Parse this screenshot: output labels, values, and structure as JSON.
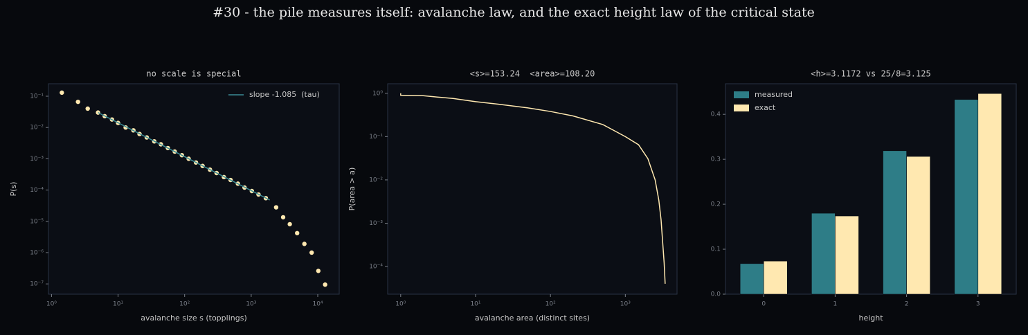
{
  "title": "#30 - the pile measures itself: avalanche law, and the exact height law of the critical state",
  "chart_data": [
    {
      "type": "scatter",
      "title": "no scale is special",
      "xlabel": "avalanche size s (topplings)",
      "ylabel": "P(s)",
      "xscale": "log",
      "yscale": "log",
      "xlim": [
        0.9,
        21000
      ],
      "ylim": [
        4.7e-08,
        0.25
      ],
      "xticks": [
        {
          "value": 1,
          "label": "10⁰"
        },
        {
          "value": 10,
          "label": "10¹"
        },
        {
          "value": 100,
          "label": "10²"
        },
        {
          "value": 1000,
          "label": "10³"
        },
        {
          "value": 10000,
          "label": "10⁴"
        }
      ],
      "yticks": [
        {
          "value": 1e-07,
          "label": "10⁻⁷"
        },
        {
          "value": 1e-06,
          "label": "10⁻⁶"
        },
        {
          "value": 1e-05,
          "label": "10⁻⁵"
        },
        {
          "value": 0.0001,
          "label": "10⁻⁴"
        },
        {
          "value": 0.001,
          "label": "10⁻³"
        },
        {
          "value": 0.01,
          "label": "10⁻²"
        },
        {
          "value": 0.1,
          "label": "10⁻¹"
        }
      ],
      "legend": "upper right",
      "series": [
        {
          "type": "scatter",
          "color": "#ffe8b0",
          "x": [
            1.43,
            2.5,
            3.5,
            5.0,
            6.3,
            8.1,
            10,
            13,
            17,
            21,
            27,
            35,
            44,
            56,
            71,
            91,
            115,
            148,
            186,
            240,
            302,
            389,
            490,
            631,
            794,
            1023,
            1288,
            1660,
            2370,
            3020,
            3800,
            4900,
            6300,
            8100,
            10200,
            12900
          ],
          "y": [
            0.13,
            0.066,
            0.04,
            0.03,
            0.023,
            0.018,
            0.014,
            0.01,
            0.0081,
            0.0062,
            0.0048,
            0.0036,
            0.0029,
            0.0022,
            0.0017,
            0.0013,
            0.001,
            0.00076,
            0.00059,
            0.00045,
            0.00035,
            0.00026,
            0.00021,
            0.00016,
            0.00012,
            9.3e-05,
            7.2e-05,
            5.5e-05,
            2.8e-05,
            1.35e-05,
            8.1e-06,
            4.2e-06,
            1.9e-06,
            1e-06,
            2.6e-07,
            9.5e-08
          ]
        },
        {
          "type": "line",
          "name": "slope -1.085  (tau)",
          "color": "#3a8c96",
          "x": [
            5,
            1900
          ],
          "y": [
            0.03,
            4.8e-05
          ]
        }
      ]
    },
    {
      "type": "line",
      "title": "<s>=153.24  <area>=108.20",
      "xlabel": "avalanche area (distinct sites)",
      "ylabel": "P(area > a)",
      "xscale": "log",
      "yscale": "log",
      "xlim": [
        0.67,
        4900
      ],
      "ylim": [
        2.3e-05,
        1.66
      ],
      "xticks": [
        {
          "value": 1,
          "label": "10⁰"
        },
        {
          "value": 10,
          "label": "10¹"
        },
        {
          "value": 100,
          "label": "10²"
        },
        {
          "value": 1000,
          "label": "10³"
        }
      ],
      "yticks": [
        {
          "value": 0.0001,
          "label": "10⁻⁴"
        },
        {
          "value": 0.001,
          "label": "10⁻³"
        },
        {
          "value": 0.01,
          "label": "10⁻²"
        },
        {
          "value": 0.1,
          "label": "10⁻¹"
        },
        {
          "value": 1,
          "label": "10⁰"
        }
      ],
      "series": [
        {
          "type": "line",
          "color": "#ffe8b0",
          "x": [
            1,
            1,
            2,
            3,
            5,
            10,
            20,
            50,
            100,
            200,
            500,
            1000,
            1500,
            2000,
            2500,
            2800,
            3000,
            3200,
            3300,
            3400
          ],
          "y": [
            1,
            0.9,
            0.88,
            0.82,
            0.76,
            0.64,
            0.56,
            0.46,
            0.38,
            0.3,
            0.19,
            0.1,
            0.065,
            0.031,
            0.01,
            0.0034,
            0.0012,
            0.00025,
            0.00012,
            4e-05
          ]
        }
      ]
    },
    {
      "type": "bar",
      "title": "<h>=3.1172 vs 25/8=3.125",
      "xlabel": "height",
      "categories": [
        "0",
        "1",
        "2",
        "3"
      ],
      "ylim": [
        0,
        0.468
      ],
      "yticks": [
        {
          "value": 0,
          "label": "0.0"
        },
        0.1,
        0.2,
        0.3,
        0.4
      ],
      "legend": "upper left",
      "series": [
        {
          "name": "measured",
          "color": "#2e7d87",
          "values": [
            0.068,
            0.18,
            0.319,
            0.433
          ]
        },
        {
          "name": "exact",
          "color": "#ffe8b0",
          "values": [
            0.0736,
            0.1739,
            0.3063,
            0.4462
          ]
        }
      ]
    }
  ]
}
